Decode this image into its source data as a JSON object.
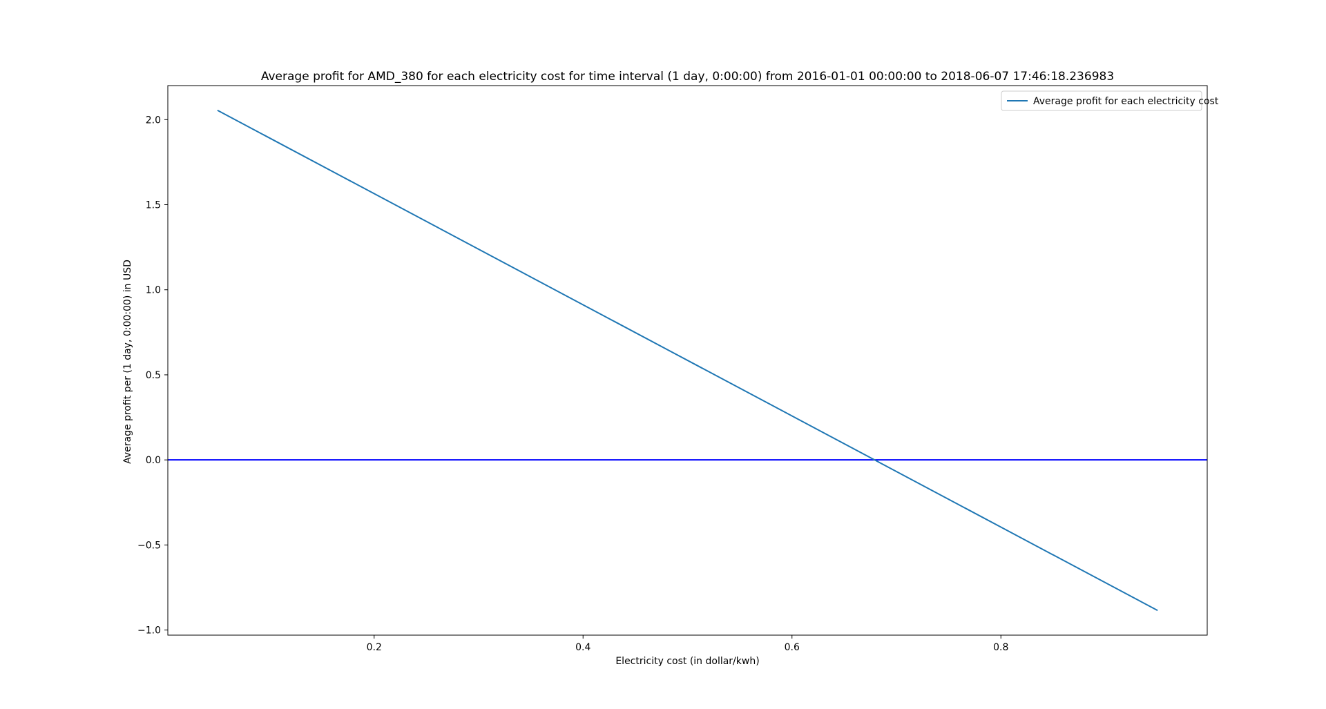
{
  "chart_data": {
    "type": "line",
    "title": "Average profit for AMD_380 for each electricity cost for time interval (1 day, 0:00:00) from 2016-01-01 00:00:00 to 2018-06-07 17:46:18.236983",
    "xlabel": "Electricity cost (in dollar/kwh)",
    "ylabel": "Average profit per (1 day, 0:00:00) in USD",
    "xlim": [
      0.0025,
      0.9975
    ],
    "ylim": [
      -1.03,
      2.2
    ],
    "x_ticks": [
      0.2,
      0.4,
      0.6,
      0.8
    ],
    "x_tick_labels": [
      "0.2",
      "0.4",
      "0.6",
      "0.8"
    ],
    "y_ticks": [
      -1.0,
      -0.5,
      0.0,
      0.5,
      1.0,
      1.5,
      2.0
    ],
    "y_tick_labels": [
      "−1.0",
      "−0.5",
      "0.0",
      "0.5",
      "1.0",
      "1.5",
      "2.0"
    ],
    "grid": false,
    "legend_position": "top-right",
    "series": [
      {
        "name": "Average profit for each electricity cost",
        "color": "#1f77b4",
        "x": [
          0.05,
          0.95
        ],
        "y": [
          2.055,
          -0.885
        ]
      }
    ],
    "reference_lines": [
      {
        "type": "horizontal",
        "y": 0.0,
        "color": "#0000ff"
      }
    ]
  }
}
